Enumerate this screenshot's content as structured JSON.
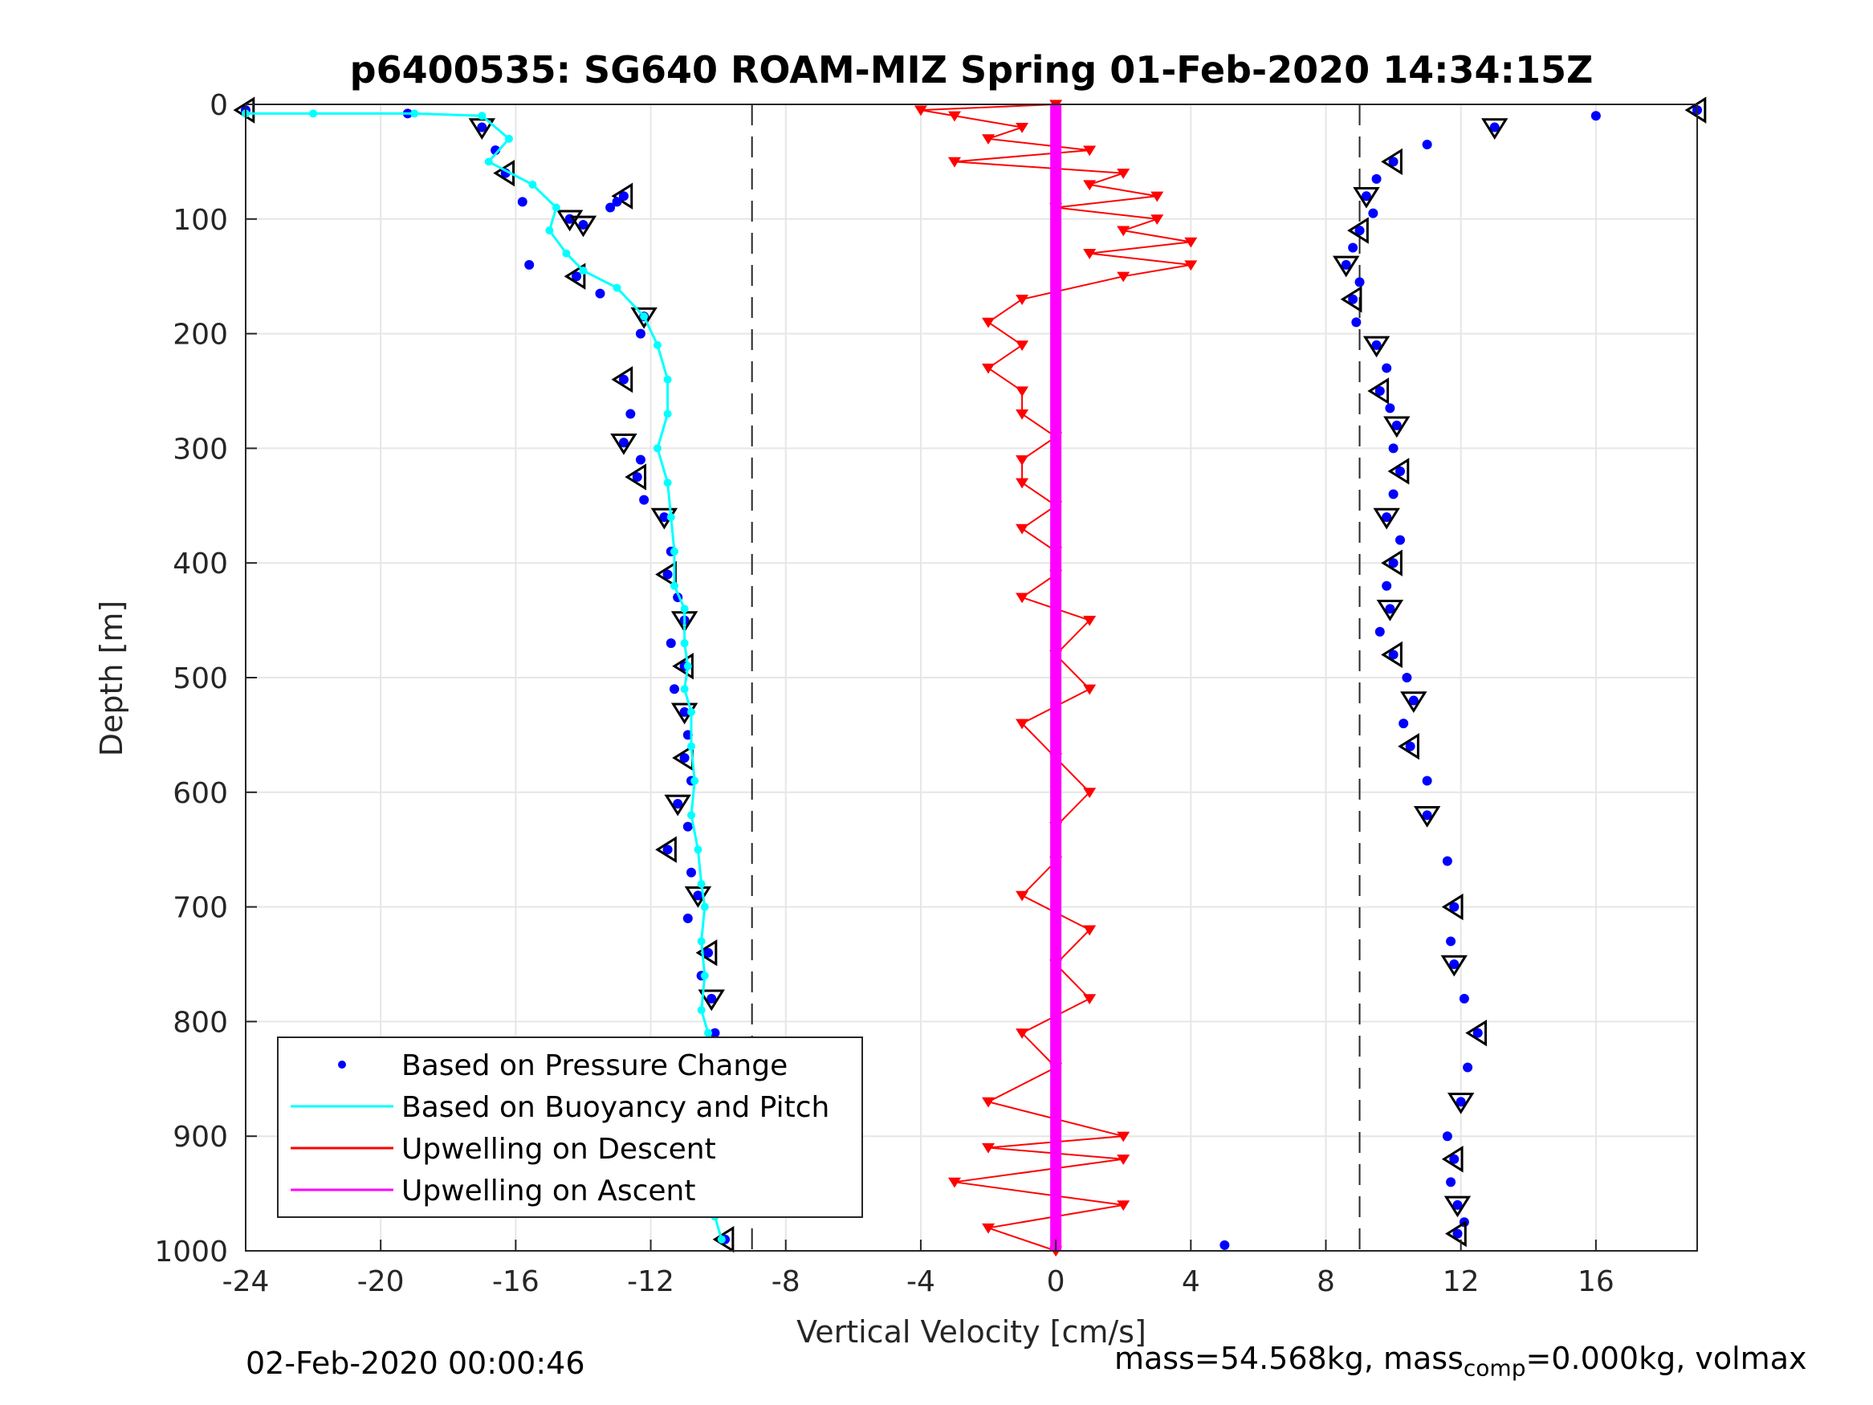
{
  "chart_data": {
    "type": "scatter",
    "title": "p6400535: SG640 ROAM-MIZ Spring 01-Feb-2020 14:34:15Z",
    "xlabel": "Vertical Velocity [cm/s]",
    "ylabel": "Depth [m]",
    "xlim": [
      -24,
      19
    ],
    "ylim": [
      0,
      1000
    ],
    "y_reversed": true,
    "grid": true,
    "x_ticks": [
      -24,
      -20,
      -16,
      -12,
      -8,
      -4,
      0,
      4,
      8,
      12,
      16
    ],
    "y_ticks": [
      0,
      100,
      200,
      300,
      400,
      500,
      600,
      700,
      800,
      900,
      1000
    ],
    "x_tick_labels": [
      "-24",
      "-20",
      "-16",
      "-12",
      "-8",
      "-4",
      "0",
      "4",
      "8",
      "12",
      "16"
    ],
    "y_tick_labels": [
      "0",
      "100",
      "200",
      "300",
      "400",
      "500",
      "600",
      "700",
      "800",
      "900",
      "1000"
    ],
    "reference_lines_x": [
      -9,
      9
    ],
    "legend_placement": "bottom-left",
    "legend": [
      {
        "label": "Based on Pressure Change",
        "color": "#0000ff",
        "style": "dot"
      },
      {
        "label": "Based on Buoyancy and Pitch",
        "color": "#00ffff",
        "style": "line"
      },
      {
        "label": "Upwelling on Descent",
        "color": "#ff0000",
        "style": "line"
      },
      {
        "label": "Upwelling on Ascent",
        "color": "#ff00ff",
        "style": "line"
      }
    ],
    "series": [
      {
        "name": "Based on Pressure Change",
        "color": "#0000ff",
        "subset": "descent",
        "x": [
          -24.0,
          -19.2,
          -17.0,
          -16.6,
          -16.3,
          -15.8,
          -14.4,
          -13.2,
          -12.8,
          -13.0,
          -14.0,
          -15.6,
          -14.2,
          -13.5,
          -12.2,
          -12.3,
          -12.8,
          -12.6,
          -12.8,
          -12.3,
          -12.4,
          -12.2,
          -11.6,
          -11.4,
          -11.5,
          -11.2,
          -11.0,
          -11.4,
          -11.0,
          -11.3,
          -11.0,
          -10.9,
          -11.0,
          -10.8,
          -11.2,
          -10.9,
          -11.5,
          -10.8,
          -10.6,
          -10.9,
          -10.3,
          -10.5,
          -10.2,
          -10.1,
          -10.3,
          -10.0,
          -10.1,
          -9.9,
          -9.8
        ],
        "y": [
          5,
          8,
          20,
          40,
          60,
          85,
          100,
          90,
          80,
          85,
          105,
          140,
          150,
          165,
          185,
          200,
          240,
          270,
          295,
          310,
          325,
          345,
          360,
          390,
          410,
          430,
          450,
          470,
          490,
          510,
          530,
          550,
          570,
          590,
          610,
          630,
          650,
          670,
          690,
          710,
          740,
          760,
          780,
          810,
          840,
          870,
          900,
          940,
          990
        ]
      },
      {
        "name": "Based on Buoyancy and Pitch",
        "color": "#00ffff",
        "subset": "descent",
        "x": [
          -24.0,
          -22.0,
          -19.0,
          -17.0,
          -16.2,
          -16.8,
          -15.5,
          -14.8,
          -15.0,
          -14.5,
          -14.0,
          -13.0,
          -12.2,
          -11.8,
          -11.5,
          -11.5,
          -11.8,
          -11.5,
          -11.4,
          -11.3,
          -11.3,
          -11.0,
          -11.0,
          -10.9,
          -11.0,
          -10.8,
          -10.8,
          -10.7,
          -10.8,
          -10.6,
          -10.5,
          -10.4,
          -10.5,
          -10.4,
          -10.5,
          -10.3,
          -10.3,
          -10.5,
          -10.4,
          -10.2,
          -10.0,
          -10.1,
          -9.9
        ],
        "y": [
          8,
          8,
          8,
          10,
          30,
          50,
          70,
          90,
          110,
          130,
          145,
          160,
          185,
          210,
          240,
          270,
          300,
          330,
          360,
          390,
          420,
          440,
          470,
          490,
          510,
          530,
          560,
          590,
          620,
          650,
          680,
          700,
          730,
          760,
          790,
          810,
          840,
          860,
          880,
          910,
          940,
          970,
          990
        ]
      },
      {
        "name": "Based on Pressure Change",
        "color": "#0000ff",
        "subset": "ascent",
        "x": [
          19.0,
          16.0,
          13.0,
          11.0,
          10.0,
          9.5,
          9.2,
          9.4,
          9.0,
          8.8,
          8.6,
          9.0,
          8.8,
          8.9,
          9.5,
          9.8,
          9.6,
          9.9,
          10.1,
          10.0,
          10.2,
          10.0,
          9.8,
          10.2,
          10.0,
          9.8,
          9.9,
          9.6,
          10.0,
          10.4,
          10.6,
          10.3,
          10.5,
          11.0,
          11.0,
          11.6,
          11.8,
          11.7,
          11.8,
          12.1,
          12.5,
          12.2,
          12.0,
          11.6,
          11.8,
          11.7,
          11.9,
          12.1,
          11.9,
          5.0
        ],
        "y": [
          5,
          10,
          20,
          35,
          50,
          65,
          80,
          95,
          110,
          125,
          140,
          155,
          170,
          190,
          210,
          230,
          250,
          265,
          280,
          300,
          320,
          340,
          360,
          380,
          400,
          420,
          440,
          460,
          480,
          500,
          520,
          540,
          560,
          590,
          620,
          660,
          700,
          730,
          750,
          780,
          810,
          840,
          870,
          900,
          920,
          940,
          960,
          975,
          985,
          995
        ]
      },
      {
        "name": "Upwelling on Descent",
        "color": "#ff0000",
        "style": "line-triangle-down",
        "x": [
          0,
          -4,
          -3,
          -1,
          -2,
          1,
          -3,
          2,
          1,
          3,
          0,
          3,
          2,
          4,
          1,
          4,
          2,
          -1,
          -2,
          -1,
          -2,
          -1,
          -1,
          0,
          -1,
          -1,
          0,
          -1,
          0,
          0,
          -1,
          1,
          0,
          1,
          -1,
          0,
          1,
          0,
          0,
          -1,
          1,
          0,
          1,
          -1,
          0,
          -2,
          2,
          -2,
          2,
          -3,
          2,
          -2,
          0
        ],
        "x_detail": "per-level upwelling estimate, cm/s",
        "y": [
          0,
          5,
          10,
          20,
          30,
          40,
          50,
          60,
          70,
          80,
          90,
          100,
          110,
          120,
          130,
          140,
          150,
          170,
          190,
          210,
          230,
          250,
          270,
          290,
          310,
          330,
          350,
          370,
          390,
          410,
          430,
          450,
          480,
          510,
          540,
          570,
          600,
          630,
          660,
          690,
          720,
          750,
          780,
          810,
          840,
          870,
          900,
          910,
          920,
          940,
          960,
          980,
          1000
        ]
      },
      {
        "name": "Upwelling on Ascent",
        "color": "#ff00ff",
        "style": "line",
        "x": [
          0,
          0
        ],
        "y": [
          0,
          1000
        ]
      }
    ]
  },
  "footer": {
    "left": "02-Feb-2020 00:00:46",
    "mass_text_a": "mass=54.568kg, mass",
    "mass_sub": "comp",
    "mass_text_b": "=0.000kg, volmax"
  }
}
